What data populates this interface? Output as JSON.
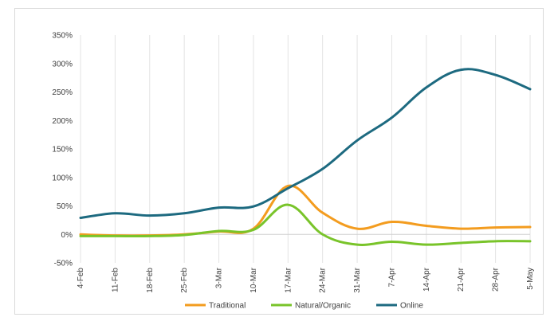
{
  "chart_data": {
    "type": "line",
    "title": "",
    "xlabel": "",
    "ylabel": "",
    "categories": [
      "4-Feb",
      "11-Feb",
      "18-Feb",
      "25-Feb",
      "3-Mar",
      "10-Mar",
      "17-Mar",
      "24-Mar",
      "31-Mar",
      "7-Apr",
      "14-Apr",
      "21-Apr",
      "28-Apr",
      "5-May"
    ],
    "y_ticks": [
      "350%",
      "300%",
      "250%",
      "200%",
      "150%",
      "100%",
      "50%",
      "0%",
      "-50%"
    ],
    "y_tick_values": [
      350,
      300,
      250,
      200,
      150,
      100,
      50,
      0,
      -50
    ],
    "ylim": [
      -50,
      350
    ],
    "y_unit": "%",
    "grid": "vertical",
    "legend_position": "bottom",
    "series": [
      {
        "name": "Traditional",
        "color": "#f39c1f",
        "values": [
          0,
          -2,
          -2,
          0,
          5,
          10,
          85,
          38,
          10,
          22,
          15,
          10,
          12,
          13
        ]
      },
      {
        "name": "Natural/Organic",
        "color": "#79c42a",
        "values": [
          -3,
          -3,
          -3,
          -1,
          6,
          8,
          52,
          0,
          -18,
          -13,
          -18,
          -15,
          -12,
          -12
        ]
      },
      {
        "name": "Online",
        "color": "#1d6a80",
        "values": [
          29,
          37,
          33,
          37,
          47,
          49,
          81,
          115,
          165,
          205,
          258,
          289,
          280,
          255
        ]
      }
    ]
  }
}
